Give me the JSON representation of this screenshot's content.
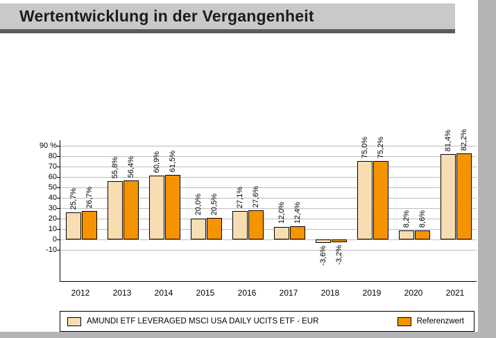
{
  "header": {
    "title": "Wertentwicklung in der Vergangenheit"
  },
  "chart_data": {
    "type": "bar",
    "title": "Wertentwicklung in der Vergangenheit",
    "categories": [
      "2012",
      "2013",
      "2014",
      "2015",
      "2016",
      "2017",
      "2018",
      "2019",
      "2020",
      "2021"
    ],
    "series": [
      {
        "name": "AMUNDI ETF LEVERAGED MSCI USA DAILY UCITS ETF - EUR",
        "color": "#f8ddb2",
        "values": [
          25.7,
          55.8,
          60.9,
          20.0,
          27.1,
          12.0,
          -3.6,
          75.0,
          8.2,
          81.4
        ],
        "labels": [
          "25,7%",
          "55,8%",
          "60,9%",
          "20,0%",
          "27,1%",
          "12,0%",
          "-3,6%",
          "75,0%",
          "8,2%",
          "81,4%"
        ]
      },
      {
        "name": "Referenzwert",
        "color": "#f59300",
        "values": [
          26.7,
          56.4,
          61.5,
          20.5,
          27.6,
          12.4,
          -3.2,
          75.2,
          8.6,
          82.2
        ],
        "labels": [
          "26,7%",
          "56,4%",
          "61,5%",
          "20,5%",
          "27,6%",
          "12,4%",
          "-3,2%",
          "75,2%",
          "8,6%",
          "82,2%"
        ]
      }
    ],
    "y_axis": {
      "unit": "%",
      "ticks": [
        {
          "v": 90,
          "label": "90 %"
        },
        {
          "v": 80,
          "label": "80"
        },
        {
          "v": 70,
          "label": "70"
        },
        {
          "v": 60,
          "label": "60"
        },
        {
          "v": 50,
          "label": "50"
        },
        {
          "v": 40,
          "label": "40"
        },
        {
          "v": 30,
          "label": "30"
        },
        {
          "v": 20,
          "label": "20"
        },
        {
          "v": 10,
          "label": "10"
        },
        {
          "v": 0,
          "label": "0"
        },
        {
          "v": -10,
          "label": "-10"
        }
      ]
    },
    "xlabel": "",
    "ylabel": "",
    "ylim": [
      -10,
      90
    ],
    "grid": true,
    "legend_position": "bottom"
  },
  "colors": {
    "banner_bg": "#c9c9c9",
    "banner_underline": "#5c5c5c",
    "side_strip": "#b4b4b4",
    "gridline": "#bdbdbd",
    "series1": "#f8ddb2",
    "series2": "#f59300"
  }
}
